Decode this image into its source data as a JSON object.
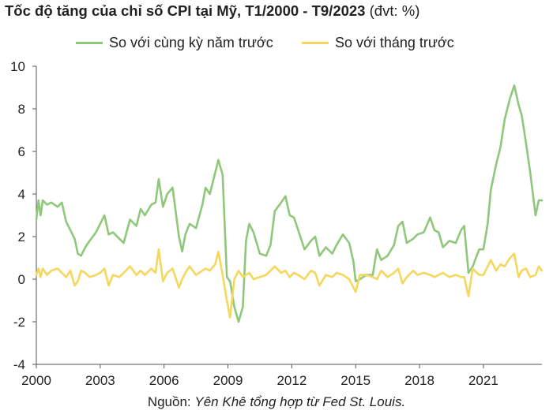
{
  "title": "Tốc độ tăng của chỉ số CPI tại Mỹ, T1/2000 - T9/2023",
  "title_unit": "(đvt: %)",
  "source_label": "Nguồn:",
  "source_text": "Yên Khê tổng hợp từ Fed St. Louis.",
  "colors": {
    "yoy": "#8fc87a",
    "mom": "#f5d75e",
    "axis": "#555555"
  },
  "chart_data": {
    "type": "line",
    "title": "Tốc độ tăng của chỉ số CPI tại Mỹ, T1/2000 - T9/2023",
    "xlabel": "",
    "ylabel": "",
    "xlim": [
      2000,
      2023.75
    ],
    "ylim": [
      -4,
      10
    ],
    "yticks": [
      -4,
      -2,
      0,
      2,
      4,
      6,
      8,
      10
    ],
    "xticks": [
      "2000",
      "2003",
      "2006",
      "2009",
      "2012",
      "2015",
      "2018",
      "2021"
    ],
    "grid": false,
    "legend_position": "top",
    "series": [
      {
        "name": "So với cùng kỳ năm trước",
        "color": "#8fc87a",
        "x": [
          2000.0,
          2000.1,
          2000.2,
          2000.3,
          2000.5,
          2000.7,
          2001.0,
          2001.2,
          2001.4,
          2001.6,
          2001.8,
          2001.95,
          2002.1,
          2002.3,
          2002.5,
          2002.8,
          2003.0,
          2003.2,
          2003.4,
          2003.6,
          2003.9,
          2004.1,
          2004.4,
          2004.7,
          2004.9,
          2005.1,
          2005.4,
          2005.6,
          2005.75,
          2005.95,
          2006.15,
          2006.4,
          2006.7,
          2006.85,
          2007.0,
          2007.2,
          2007.5,
          2007.8,
          2007.95,
          2008.15,
          2008.4,
          2008.55,
          2008.75,
          2008.95,
          2009.1,
          2009.3,
          2009.5,
          2009.7,
          2009.85,
          2010.0,
          2010.2,
          2010.5,
          2010.8,
          2011.0,
          2011.2,
          2011.5,
          2011.7,
          2011.9,
          2012.1,
          2012.3,
          2012.6,
          2012.9,
          2013.1,
          2013.3,
          2013.6,
          2013.9,
          2014.1,
          2014.4,
          2014.7,
          2014.9,
          2015.0,
          2015.2,
          2015.5,
          2015.8,
          2016.0,
          2016.2,
          2016.5,
          2016.8,
          2017.0,
          2017.2,
          2017.4,
          2017.7,
          2017.9,
          2018.2,
          2018.5,
          2018.7,
          2018.9,
          2019.1,
          2019.4,
          2019.7,
          2019.95,
          2020.1,
          2020.3,
          2020.5,
          2020.8,
          2021.0,
          2021.2,
          2021.35,
          2021.6,
          2021.8,
          2022.0,
          2022.25,
          2022.45,
          2022.65,
          2022.8,
          2023.0,
          2023.2,
          2023.45,
          2023.6,
          2023.75
        ],
        "values": [
          2.8,
          3.7,
          3.0,
          3.7,
          3.5,
          3.6,
          3.4,
          3.6,
          2.7,
          2.3,
          1.9,
          1.2,
          1.1,
          1.5,
          1.8,
          2.2,
          2.6,
          3.0,
          2.1,
          2.2,
          1.9,
          1.7,
          2.8,
          2.5,
          3.3,
          3.0,
          3.5,
          3.6,
          4.7,
          3.4,
          4.0,
          4.3,
          2.0,
          1.3,
          2.1,
          2.6,
          2.4,
          3.5,
          4.3,
          4.0,
          5.0,
          5.6,
          4.9,
          0.1,
          -0.1,
          -1.3,
          -2.0,
          -1.3,
          1.8,
          2.6,
          2.2,
          1.2,
          1.1,
          1.6,
          3.2,
          3.6,
          3.9,
          3.0,
          2.9,
          2.3,
          1.4,
          1.8,
          2.0,
          1.1,
          1.5,
          1.2,
          1.6,
          2.1,
          1.7,
          0.8,
          -0.1,
          0.0,
          0.2,
          0.2,
          1.4,
          0.9,
          1.1,
          1.6,
          2.5,
          2.7,
          1.7,
          1.9,
          2.1,
          2.2,
          2.9,
          2.3,
          2.2,
          1.5,
          1.8,
          1.7,
          2.3,
          2.5,
          0.3,
          0.6,
          1.4,
          1.4,
          2.6,
          4.2,
          5.4,
          6.2,
          7.5,
          8.5,
          9.1,
          8.2,
          7.7,
          6.4,
          5.0,
          3.0,
          3.7,
          3.7
        ]
      },
      {
        "name": "So với tháng trước",
        "color": "#f5d75e",
        "x": [
          2000.0,
          2000.1,
          2000.2,
          2000.3,
          2000.5,
          2000.7,
          2001.0,
          2001.2,
          2001.4,
          2001.6,
          2001.8,
          2001.95,
          2002.1,
          2002.3,
          2002.5,
          2002.8,
          2003.0,
          2003.2,
          2003.4,
          2003.6,
          2003.9,
          2004.1,
          2004.4,
          2004.7,
          2004.9,
          2005.1,
          2005.4,
          2005.6,
          2005.75,
          2005.95,
          2006.15,
          2006.4,
          2006.7,
          2006.85,
          2007.0,
          2007.2,
          2007.5,
          2007.8,
          2007.95,
          2008.15,
          2008.4,
          2008.55,
          2008.75,
          2008.95,
          2009.1,
          2009.3,
          2009.5,
          2009.7,
          2009.85,
          2010.0,
          2010.2,
          2010.5,
          2010.8,
          2011.0,
          2011.2,
          2011.5,
          2011.7,
          2011.9,
          2012.1,
          2012.3,
          2012.6,
          2012.9,
          2013.1,
          2013.3,
          2013.6,
          2013.9,
          2014.1,
          2014.4,
          2014.7,
          2014.9,
          2015.0,
          2015.2,
          2015.5,
          2015.8,
          2016.0,
          2016.2,
          2016.5,
          2016.8,
          2017.0,
          2017.2,
          2017.4,
          2017.7,
          2017.9,
          2018.2,
          2018.5,
          2018.7,
          2018.9,
          2019.1,
          2019.4,
          2019.7,
          2019.95,
          2020.1,
          2020.3,
          2020.5,
          2020.8,
          2021.0,
          2021.2,
          2021.35,
          2021.6,
          2021.8,
          2022.0,
          2022.25,
          2022.45,
          2022.65,
          2022.8,
          2023.0,
          2023.2,
          2023.45,
          2023.6,
          2023.75
        ],
        "values": [
          0.2,
          0.5,
          0.1,
          0.5,
          0.2,
          0.4,
          0.5,
          0.3,
          0.1,
          0.4,
          -0.3,
          -0.1,
          0.4,
          0.3,
          0.1,
          0.2,
          0.3,
          0.5,
          -0.3,
          0.2,
          0.1,
          0.3,
          0.6,
          0.2,
          0.4,
          0.2,
          0.5,
          0.3,
          1.4,
          -0.1,
          0.3,
          0.5,
          -0.4,
          0.0,
          0.3,
          0.6,
          0.2,
          0.4,
          0.5,
          0.4,
          0.7,
          1.3,
          0.2,
          -1.0,
          -1.8,
          0.0,
          0.4,
          0.1,
          0.2,
          0.3,
          0.0,
          0.1,
          0.2,
          0.4,
          0.6,
          0.3,
          0.4,
          0.1,
          0.3,
          0.2,
          0.0,
          0.4,
          0.3,
          -0.3,
          0.2,
          0.1,
          0.3,
          0.2,
          0.0,
          -0.4,
          -0.6,
          0.2,
          0.2,
          0.1,
          0.0,
          0.4,
          0.1,
          0.3,
          0.5,
          -0.2,
          0.1,
          0.4,
          0.2,
          0.3,
          0.2,
          0.1,
          0.2,
          0.3,
          0.1,
          0.2,
          0.1,
          0.1,
          -0.8,
          0.5,
          0.2,
          0.2,
          0.6,
          0.9,
          0.4,
          0.7,
          0.6,
          1.0,
          1.2,
          0.1,
          0.4,
          0.5,
          0.1,
          0.2,
          0.6,
          0.4
        ]
      }
    ]
  }
}
